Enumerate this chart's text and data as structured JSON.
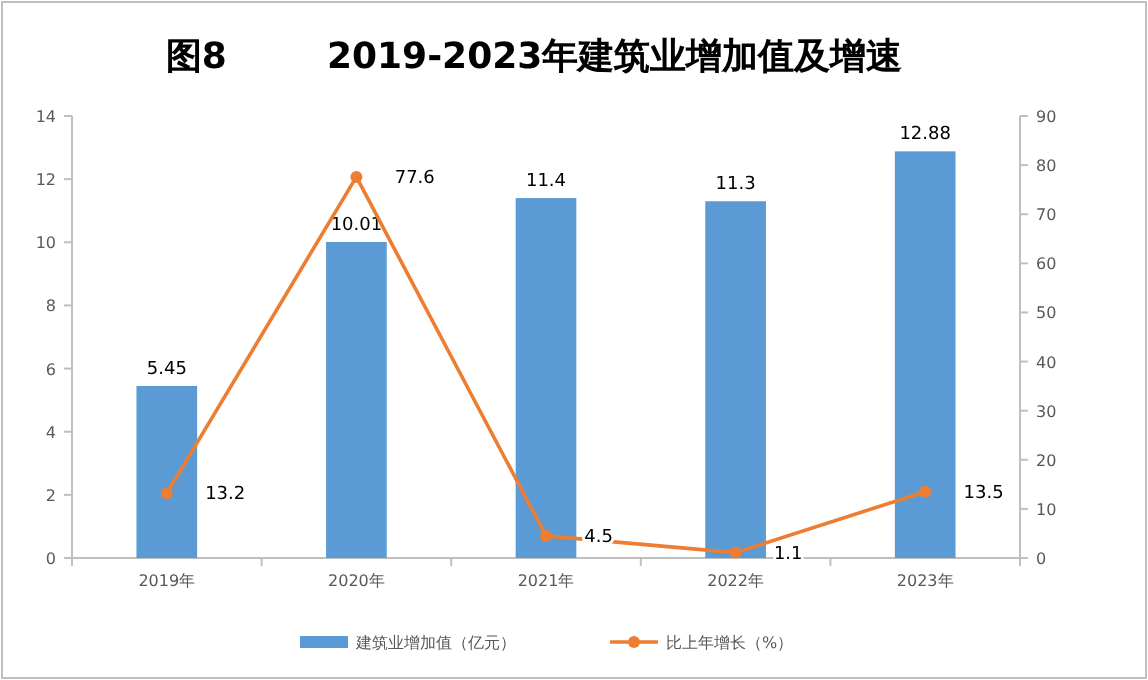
{
  "chart_data": {
    "type": "bar",
    "title": "图8        2019-2023年建筑业增加值及增速",
    "categories": [
      "2019年",
      "2020年",
      "2021年",
      "2022年",
      "2023年"
    ],
    "series": [
      {
        "name": "建筑业增加值（亿元）",
        "color": "#5b9bd5",
        "values": [
          5.45,
          10.01,
          11.4,
          11.3,
          12.88
        ]
      },
      {
        "name": "比上年增长（%）",
        "type": "line",
        "axis": "y2",
        "color": "#ed7d31",
        "marker": "circle",
        "values": [
          13.2,
          77.6,
          4.5,
          1.1,
          13.5
        ]
      }
    ],
    "ylim": [
      0,
      14
    ],
    "yticks": [
      0,
      2,
      4,
      6,
      8,
      10,
      12,
      14
    ],
    "y2lim": [
      0,
      90
    ],
    "y2ticks": [
      0,
      10,
      20,
      30,
      40,
      50,
      60,
      70,
      80,
      90
    ],
    "data_labels": true,
    "legend": "bottom",
    "grid": false
  }
}
